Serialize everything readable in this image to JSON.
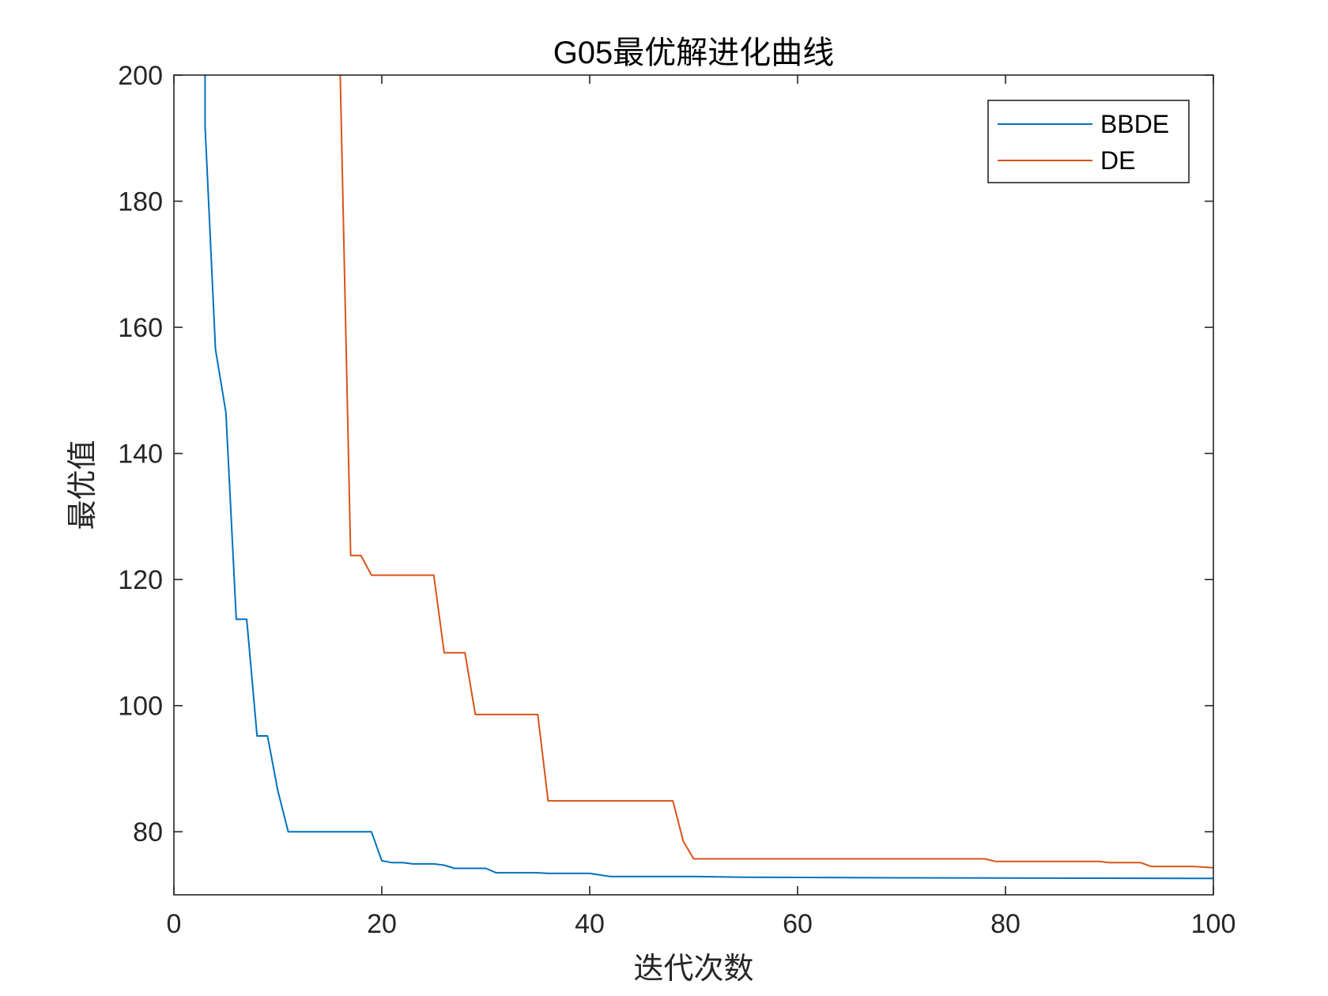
{
  "chart_data": {
    "type": "line",
    "title": "G05最优解进化曲线",
    "xlabel": "迭代次数",
    "ylabel": "最优值",
    "xlim": [
      0,
      100
    ],
    "ylim": [
      70,
      200
    ],
    "xticks": [
      0,
      20,
      40,
      60,
      80,
      100
    ],
    "yticks": [
      80,
      100,
      120,
      140,
      160,
      180,
      200
    ],
    "xtick_labels": [
      "0",
      "20",
      "40",
      "60",
      "80",
      100
    ],
    "ytick_labels": [
      "80",
      "100",
      "120",
      "140",
      "160",
      "180",
      "200"
    ],
    "grid": false,
    "legend_position": "top-right",
    "series": [
      {
        "name": "BBDE",
        "color": "#0072BD",
        "x": [
          3,
          3,
          4,
          5,
          6,
          7,
          8,
          9,
          10,
          11,
          12,
          19,
          20,
          21,
          22,
          23,
          24,
          25,
          26,
          27,
          28,
          29,
          30,
          31,
          35,
          36,
          40,
          42,
          50,
          55,
          70,
          100
        ],
        "y": [
          200,
          192,
          156.5,
          146.5,
          113.7,
          113.7,
          95.2,
          95.2,
          86.5,
          80,
          80,
          80,
          75.4,
          75.1,
          75.1,
          74.9,
          74.9,
          74.9,
          74.7,
          74.2,
          74.2,
          74.2,
          74.2,
          73.5,
          73.5,
          73.4,
          73.4,
          72.9,
          72.9,
          72.8,
          72.7,
          72.6
        ]
      },
      {
        "name": "DE",
        "color": "#D95319",
        "x": [
          16,
          17,
          18,
          19,
          25,
          26,
          27,
          28,
          29,
          30,
          35,
          36,
          37,
          47,
          48,
          49,
          50,
          51,
          78,
          79,
          89,
          90,
          93,
          94,
          98,
          100
        ],
        "y": [
          200,
          123.8,
          123.8,
          120.7,
          120.7,
          108.4,
          108.4,
          108.4,
          98.6,
          98.6,
          98.6,
          84.9,
          84.9,
          84.9,
          84.9,
          78.5,
          75.7,
          75.7,
          75.7,
          75.3,
          75.3,
          75.1,
          75.1,
          74.5,
          74.5,
          74.3
        ]
      }
    ]
  }
}
